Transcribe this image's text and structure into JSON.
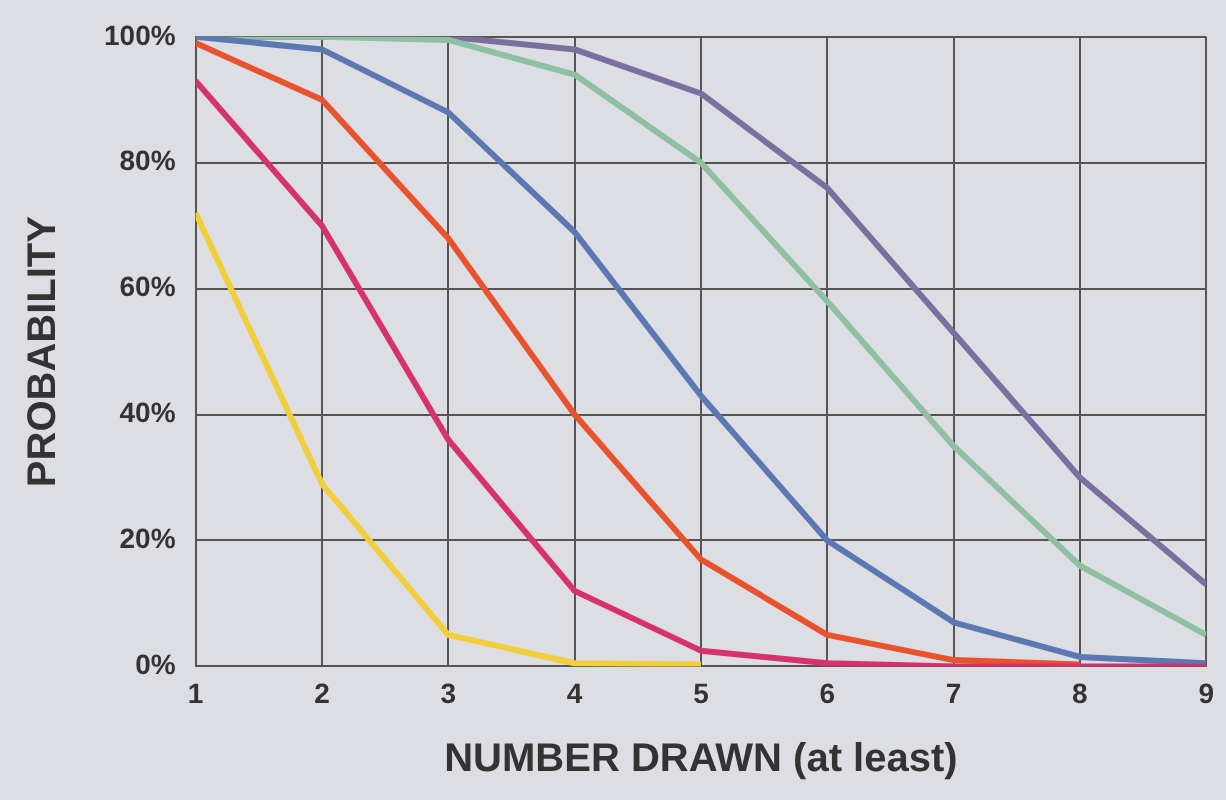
{
  "chart_data": {
    "type": "line",
    "xlabel": "NUMBER DRAWN (at least)",
    "ylabel": "PROBABILITY",
    "x": [
      1,
      2,
      3,
      4,
      5,
      6,
      7,
      8,
      9
    ],
    "series": [
      {
        "color": "#f2cf3a",
        "values": [
          72,
          29,
          5,
          0.5,
          0.3,
          null,
          null,
          null,
          null
        ]
      },
      {
        "color": "#d6336c",
        "values": [
          93,
          70,
          36,
          12,
          2.5,
          0.5,
          0,
          0,
          0
        ]
      },
      {
        "color": "#e8522c",
        "values": [
          99,
          90,
          68,
          40,
          17,
          5,
          1,
          0.3,
          null
        ]
      },
      {
        "color": "#5b78b2",
        "values": [
          100,
          98,
          88,
          69,
          43,
          20,
          7,
          1.5,
          0.5
        ]
      },
      {
        "color": "#8fc0a2",
        "values": [
          100,
          100,
          99.5,
          94,
          80,
          58,
          35,
          16,
          5
        ]
      },
      {
        "color": "#7b6fa0",
        "values": [
          100,
          100,
          100,
          98,
          91,
          76,
          53,
          30,
          13
        ]
      }
    ],
    "xlim": [
      1,
      9
    ],
    "xticks": [
      1,
      2,
      3,
      4,
      5,
      6,
      7,
      8,
      9
    ],
    "ylim": [
      0,
      100
    ],
    "yticks": [
      {
        "value": 0,
        "label": "0%"
      },
      {
        "value": 20,
        "label": "20%"
      },
      {
        "value": 40,
        "label": "40%"
      },
      {
        "value": 60,
        "label": "60%"
      },
      {
        "value": 80,
        "label": "80%"
      },
      {
        "value": 100,
        "label": "100%"
      }
    ],
    "grid": true,
    "legend": false,
    "marker": "none",
    "line_style": "solid"
  }
}
